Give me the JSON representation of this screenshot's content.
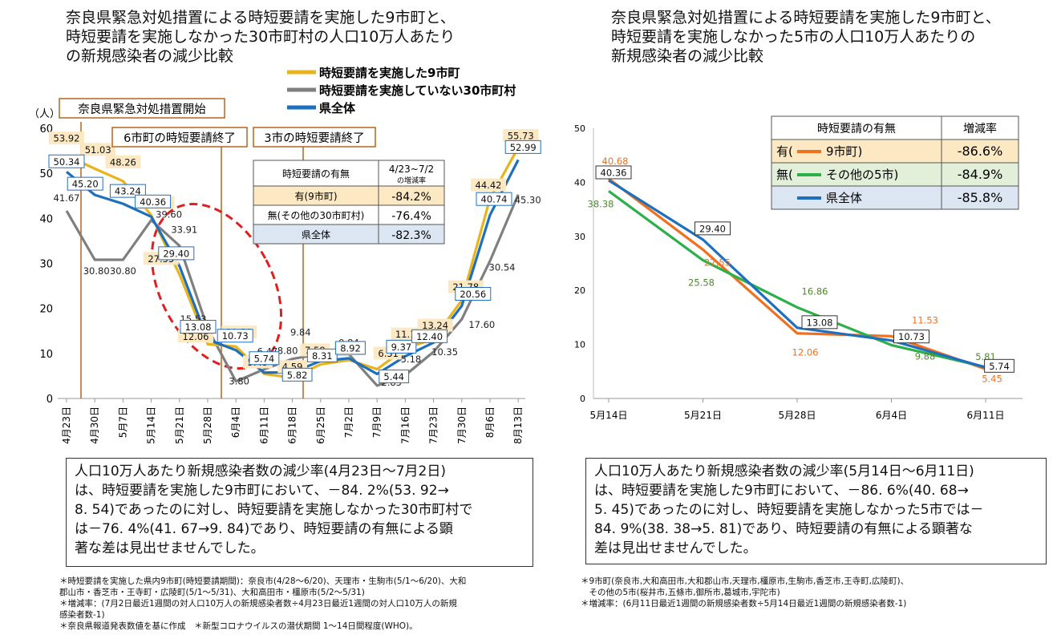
{
  "left": {
    "title_lines": [
      "奈良県緊急対処措置による時短要請を実施した9市町と、",
      "時短要請を実施しなかった30市町村の人口10万人あたり",
      "の新規感染者の減少比較"
    ],
    "unit_label": "（人）",
    "annotations": {
      "start": "奈良県緊急対処措置開始",
      "end6": "6市町の時短要請終了",
      "end3": "3市の時短要請終了"
    },
    "table": {
      "header_col1": "時短要請の有無",
      "header_col2_line1": "4/23~7/2",
      "header_col2_line2": "の増減率",
      "rows": [
        {
          "label": "有(9市町)",
          "value": "-84.2%"
        },
        {
          "label": "無(その他の30市町村)",
          "value": "-76.4%"
        },
        {
          "label": "県全体",
          "value": "-82.3%"
        }
      ]
    },
    "summary_lines": [
      "人口10万人あたり新規感染者数の減少率(4月23日～7月2日)",
      "は、時短要請を実施した9市町において、－84. 2%(53. 92→",
      "8. 54)であったのに対し、時短要請を実施しなかった30市町村で",
      "は－76. 4%(41. 67→9. 84)であり、時短要請の有無による顕",
      "著な差は見出せませんでした。"
    ],
    "notes": [
      "＊時短要請を実施した県内9市町(時短要請期間)：奈良市(4/28～6/20)、天理市・生駒市(5/1～6/20)、大和",
      "郡山市・香芝市・王寺町・広陵町(5/1～5/31)、大和高田市・橿原市(5/2～5/31)",
      "＊増減率：(7月2日最近1週間の対人口10万人の新規感染者数÷4月23日最近1週間の対人口10万人の新規",
      "感染者数-1)",
      "＊奈良県報道発表数値を基に作成　＊新型コロナウイルスの潜伏期間 1～14日間程度(WHO)。"
    ]
  },
  "right": {
    "title_lines": [
      "奈良県緊急対処措置による時短要請を実施した9市町と、",
      "時短要請を実施しなかった5市の人口10万人あたりの",
      "新規感染者の減少比較"
    ],
    "table": {
      "header_col1": "時短要請の有無",
      "header_col2": "増減率",
      "rows": [
        {
          "label_prefix": "有(",
          "label_name": "9市町)",
          "value": "-86.6%"
        },
        {
          "label_prefix": "無(",
          "label_name": "その他の5市)",
          "value": "-84.9%"
        },
        {
          "label_prefix": "",
          "label_name": "県全体",
          "value": "-85.8%"
        }
      ]
    },
    "summary_lines": [
      "人口10万人あたり新規感染者数の減少率(5月14日～6月11日)",
      "は、時短要請を実施した9市町において、－86. 6%(40. 68→",
      "5. 45)であったのに対し、時短要請を実施しなかった5市では－",
      "84. 9%(38. 38→5. 81)であり、時短要請の有無による顕著な",
      "差は見出せませんでした。"
    ],
    "notes": [
      "＊9市町(奈良市,大和高田市,大和郡山市,天理市,橿原市,生駒市,香芝市,王寺町,広陵町)、",
      "　その他の5市(桜井市,五條市,御所市,葛城市,宇陀市)",
      "＊増減率：(6月11日最近1週間の新規感染者数÷5月14日最近1週間の新規感染者数-1)"
    ]
  },
  "chart_data": [
    {
      "type": "line",
      "ylim": [
        0,
        60
      ],
      "yticks": [
        "0",
        "10",
        "20",
        "30",
        "40",
        "50",
        "60"
      ],
      "categories": [
        "4月23日",
        "4月30日",
        "5月7日",
        "5月14日",
        "5月21日",
        "5月28日",
        "6月4日",
        "6月11日",
        "6月18日",
        "6月25日",
        "7月2日",
        "7月9日",
        "7月16日",
        "7月23日",
        "7月30日",
        "8月6日",
        "8月13日"
      ],
      "series": [
        {
          "name": "時短要請を実施した9市町",
          "color": "#E8B41C",
          "values": [
            53.92,
            51.03,
            48.26,
            40.68,
            27.55,
            12.06,
            11.53,
            5.45,
            4.59,
            7.58,
            8.54,
            6.51,
            11.1,
            13.24,
            21.78,
            44.42,
            55.73
          ]
        },
        {
          "name": "時短要請を実施していない30市町村",
          "color": "#7F7F7F",
          "values": [
            41.67,
            30.8,
            30.8,
            39.6,
            33.91,
            15.53,
            3.8,
            6.47,
            8.8,
            9.84,
            9.84,
            2.85,
            5.18,
            10.35,
            17.6,
            30.54,
            45.3
          ]
        },
        {
          "name": "県全体",
          "color": "#1F6FBF",
          "values": [
            50.34,
            45.2,
            43.24,
            40.36,
            29.4,
            13.08,
            10.73,
            5.74,
            5.82,
            8.31,
            8.92,
            5.44,
            9.37,
            12.4,
            20.56,
            40.74,
            52.99
          ]
        }
      ]
    },
    {
      "type": "line",
      "ylim": [
        0,
        50
      ],
      "yticks": [
        "0",
        "10",
        "20",
        "30",
        "40",
        "50"
      ],
      "categories": [
        "5月14日",
        "5月21日",
        "5月28日",
        "6月4日",
        "6月11日"
      ],
      "series": [
        {
          "name": "9市町",
          "color": "#F07020",
          "values": [
            40.68,
            27.55,
            12.06,
            11.53,
            5.45
          ]
        },
        {
          "name": "その他の5市",
          "color": "#2DB04A",
          "values": [
            38.38,
            25.58,
            16.86,
            9.88,
            5.81
          ]
        },
        {
          "name": "県全体",
          "color": "#1F6FBF",
          "values": [
            40.36,
            29.4,
            13.08,
            10.73,
            5.74
          ]
        }
      ]
    }
  ]
}
